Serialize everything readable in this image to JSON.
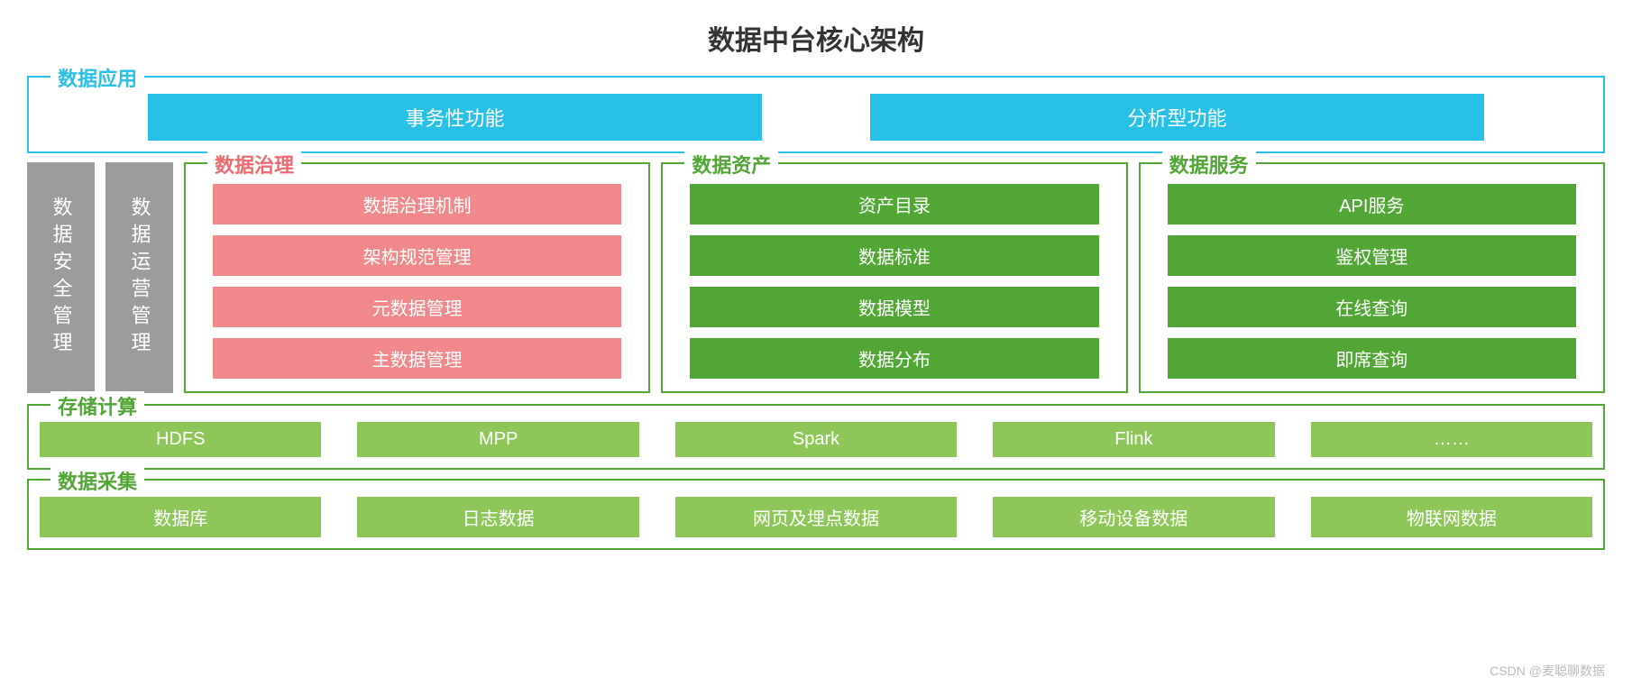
{
  "colors": {
    "cyan": "#29c0e7",
    "gray": "#9c9c9c",
    "green_dark": "#52a636",
    "green_light": "#8fc65a",
    "pink": "#f0888c",
    "pink_dark": "#ed6b70"
  },
  "title": "数据中台核心架构",
  "application": {
    "label": "数据应用",
    "blocks": [
      "事务性功能",
      "分析型功能"
    ]
  },
  "sidebars": [
    "数据安全管理",
    "数据运营管理"
  ],
  "governance": {
    "label": "数据治理",
    "items": [
      "数据治理机制",
      "架构规范管理",
      "元数据管理",
      "主数据管理"
    ]
  },
  "asset": {
    "label": "数据资产",
    "items": [
      "资产目录",
      "数据标准",
      "数据模型",
      "数据分布"
    ]
  },
  "service": {
    "label": "数据服务",
    "items": [
      "API服务",
      "鉴权管理",
      "在线查询",
      "即席查询"
    ]
  },
  "storage": {
    "label": "存储计算",
    "items": [
      "HDFS",
      "MPP",
      "Spark",
      "Flink",
      "……"
    ]
  },
  "collect": {
    "label": "数据采集",
    "items": [
      "数据库",
      "日志数据",
      "网页及埋点数据",
      "移动设备数据",
      "物联网数据"
    ]
  },
  "watermark": "CSDN @麦聪聊数据"
}
